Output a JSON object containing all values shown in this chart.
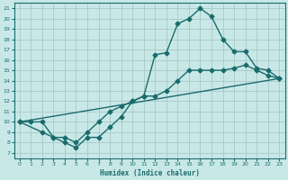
{
  "title": "",
  "xlabel": "Humidex (Indice chaleur)",
  "bg_color": "#c8e8e8",
  "grid_color": "#a8c8c8",
  "line_color": "#1a6b6b",
  "xlim": [
    -0.5,
    23.5
  ],
  "ylim": [
    6.5,
    21.5
  ],
  "xticks": [
    0,
    1,
    2,
    3,
    4,
    5,
    6,
    7,
    8,
    9,
    10,
    11,
    12,
    13,
    14,
    15,
    16,
    17,
    18,
    19,
    20,
    21,
    22,
    23
  ],
  "yticks": [
    7,
    8,
    9,
    10,
    11,
    12,
    13,
    14,
    15,
    16,
    17,
    18,
    19,
    20,
    21
  ],
  "line1_x": [
    0,
    1,
    2,
    3,
    4,
    5,
    6,
    7,
    8,
    9,
    10,
    11,
    12,
    13,
    14,
    15,
    16,
    17,
    18,
    19,
    20,
    21,
    22,
    23
  ],
  "line1_y": [
    10.0,
    10.0,
    10.0,
    8.5,
    8.0,
    7.5,
    8.5,
    8.5,
    9.5,
    10.5,
    12.0,
    12.5,
    16.5,
    16.7,
    19.5,
    20.0,
    21.0,
    20.2,
    18.0,
    16.8,
    16.8,
    15.2,
    15.0,
    14.2
  ],
  "line2_x": [
    0,
    2,
    3,
    4,
    5,
    6,
    7,
    8,
    9,
    10,
    11,
    12,
    13,
    14,
    15,
    16,
    17,
    18,
    19,
    20,
    21,
    22,
    23
  ],
  "line2_y": [
    10.0,
    9.0,
    8.5,
    8.5,
    8.0,
    9.0,
    10.0,
    11.0,
    11.5,
    12.0,
    12.5,
    12.5,
    13.0,
    14.0,
    15.0,
    15.0,
    15.0,
    15.0,
    15.2,
    15.5,
    15.0,
    14.5,
    14.2
  ],
  "line3_x": [
    0,
    23
  ],
  "line3_y": [
    10.0,
    14.2
  ],
  "markersize": 2.5,
  "linewidth": 1.0
}
